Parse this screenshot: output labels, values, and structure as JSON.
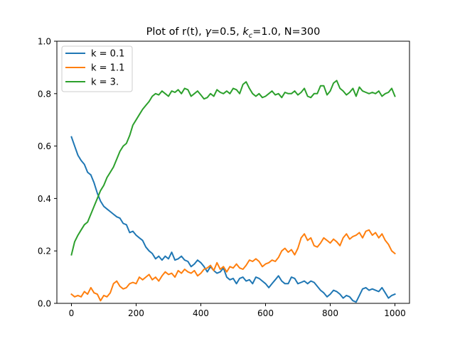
{
  "chart_data": {
    "type": "line",
    "title_parts": {
      "prefix": "Plot of r(t), ",
      "gamma_symbol": "γ",
      "gamma_value": "=0.5, ",
      "k_symbol": "k",
      "k_subscript": "c",
      "k_value": "=1.0, N=300"
    },
    "xlim": [
      -45,
      1045
    ],
    "ylim": [
      0.0,
      1.0
    ],
    "xticks": [
      0,
      200,
      400,
      600,
      800,
      1000
    ],
    "xtick_labels": [
      "0",
      "200",
      "400",
      "600",
      "800",
      "1000"
    ],
    "yticks": [
      0.0,
      0.2,
      0.4,
      0.6,
      0.8,
      1.0
    ],
    "ytick_labels": [
      "0.0",
      "0.2",
      "0.4",
      "0.6",
      "0.8",
      "1.0"
    ],
    "grid": false,
    "legend_position": "top-left",
    "series": [
      {
        "name": "k = 0.1",
        "color": "#1f77b4",
        "points": [
          [
            0,
            0.635
          ],
          [
            10,
            0.6
          ],
          [
            20,
            0.565
          ],
          [
            30,
            0.545
          ],
          [
            40,
            0.53
          ],
          [
            50,
            0.5
          ],
          [
            60,
            0.49
          ],
          [
            70,
            0.46
          ],
          [
            80,
            0.42
          ],
          [
            90,
            0.39
          ],
          [
            100,
            0.37
          ],
          [
            110,
            0.36
          ],
          [
            120,
            0.35
          ],
          [
            130,
            0.34
          ],
          [
            140,
            0.33
          ],
          [
            150,
            0.325
          ],
          [
            160,
            0.305
          ],
          [
            170,
            0.3
          ],
          [
            180,
            0.27
          ],
          [
            190,
            0.275
          ],
          [
            200,
            0.26
          ],
          [
            210,
            0.25
          ],
          [
            220,
            0.24
          ],
          [
            230,
            0.215
          ],
          [
            240,
            0.2
          ],
          [
            250,
            0.19
          ],
          [
            260,
            0.17
          ],
          [
            270,
            0.18
          ],
          [
            280,
            0.165
          ],
          [
            290,
            0.18
          ],
          [
            300,
            0.17
          ],
          [
            310,
            0.195
          ],
          [
            320,
            0.165
          ],
          [
            330,
            0.17
          ],
          [
            340,
            0.18
          ],
          [
            350,
            0.165
          ],
          [
            360,
            0.16
          ],
          [
            370,
            0.14
          ],
          [
            380,
            0.15
          ],
          [
            390,
            0.165
          ],
          [
            400,
            0.155
          ],
          [
            410,
            0.14
          ],
          [
            420,
            0.12
          ],
          [
            430,
            0.14
          ],
          [
            440,
            0.125
          ],
          [
            450,
            0.115
          ],
          [
            460,
            0.12
          ],
          [
            470,
            0.135
          ],
          [
            480,
            0.1
          ],
          [
            490,
            0.09
          ],
          [
            500,
            0.095
          ],
          [
            510,
            0.075
          ],
          [
            520,
            0.095
          ],
          [
            530,
            0.1
          ],
          [
            540,
            0.085
          ],
          [
            550,
            0.09
          ],
          [
            560,
            0.075
          ],
          [
            570,
            0.1
          ],
          [
            580,
            0.095
          ],
          [
            590,
            0.085
          ],
          [
            600,
            0.075
          ],
          [
            610,
            0.06
          ],
          [
            620,
            0.075
          ],
          [
            630,
            0.09
          ],
          [
            640,
            0.105
          ],
          [
            650,
            0.085
          ],
          [
            660,
            0.075
          ],
          [
            670,
            0.075
          ],
          [
            680,
            0.1
          ],
          [
            690,
            0.095
          ],
          [
            700,
            0.075
          ],
          [
            710,
            0.08
          ],
          [
            720,
            0.085
          ],
          [
            730,
            0.075
          ],
          [
            740,
            0.085
          ],
          [
            750,
            0.08
          ],
          [
            760,
            0.065
          ],
          [
            770,
            0.05
          ],
          [
            780,
            0.04
          ],
          [
            790,
            0.025
          ],
          [
            800,
            0.035
          ],
          [
            810,
            0.05
          ],
          [
            820,
            0.045
          ],
          [
            830,
            0.035
          ],
          [
            840,
            0.02
          ],
          [
            850,
            0.03
          ],
          [
            860,
            0.025
          ],
          [
            870,
            0.01
          ],
          [
            880,
            0.005
          ],
          [
            890,
            0.03
          ],
          [
            900,
            0.055
          ],
          [
            910,
            0.06
          ],
          [
            920,
            0.05
          ],
          [
            930,
            0.055
          ],
          [
            940,
            0.05
          ],
          [
            950,
            0.045
          ],
          [
            960,
            0.06
          ],
          [
            970,
            0.04
          ],
          [
            980,
            0.02
          ],
          [
            990,
            0.03
          ],
          [
            1000,
            0.035
          ]
        ]
      },
      {
        "name": "k = 1.1",
        "color": "#ff7f0e",
        "points": [
          [
            0,
            0.035
          ],
          [
            10,
            0.025
          ],
          [
            20,
            0.03
          ],
          [
            30,
            0.025
          ],
          [
            40,
            0.045
          ],
          [
            50,
            0.035
          ],
          [
            60,
            0.06
          ],
          [
            70,
            0.04
          ],
          [
            80,
            0.035
          ],
          [
            90,
            0.01
          ],
          [
            100,
            0.03
          ],
          [
            110,
            0.025
          ],
          [
            120,
            0.04
          ],
          [
            130,
            0.075
          ],
          [
            140,
            0.085
          ],
          [
            150,
            0.065
          ],
          [
            160,
            0.055
          ],
          [
            170,
            0.06
          ],
          [
            180,
            0.075
          ],
          [
            190,
            0.08
          ],
          [
            200,
            0.075
          ],
          [
            210,
            0.1
          ],
          [
            220,
            0.09
          ],
          [
            230,
            0.1
          ],
          [
            240,
            0.11
          ],
          [
            250,
            0.09
          ],
          [
            260,
            0.1
          ],
          [
            270,
            0.085
          ],
          [
            280,
            0.105
          ],
          [
            290,
            0.12
          ],
          [
            300,
            0.11
          ],
          [
            310,
            0.115
          ],
          [
            320,
            0.1
          ],
          [
            330,
            0.125
          ],
          [
            340,
            0.115
          ],
          [
            350,
            0.13
          ],
          [
            360,
            0.12
          ],
          [
            370,
            0.115
          ],
          [
            380,
            0.125
          ],
          [
            390,
            0.105
          ],
          [
            400,
            0.115
          ],
          [
            410,
            0.13
          ],
          [
            420,
            0.135
          ],
          [
            430,
            0.145
          ],
          [
            440,
            0.125
          ],
          [
            450,
            0.155
          ],
          [
            460,
            0.13
          ],
          [
            470,
            0.14
          ],
          [
            480,
            0.12
          ],
          [
            490,
            0.14
          ],
          [
            500,
            0.135
          ],
          [
            510,
            0.15
          ],
          [
            520,
            0.135
          ],
          [
            530,
            0.13
          ],
          [
            540,
            0.145
          ],
          [
            550,
            0.165
          ],
          [
            560,
            0.16
          ],
          [
            570,
            0.17
          ],
          [
            580,
            0.16
          ],
          [
            590,
            0.14
          ],
          [
            600,
            0.15
          ],
          [
            610,
            0.155
          ],
          [
            620,
            0.165
          ],
          [
            630,
            0.16
          ],
          [
            640,
            0.175
          ],
          [
            650,
            0.2
          ],
          [
            660,
            0.21
          ],
          [
            670,
            0.195
          ],
          [
            680,
            0.205
          ],
          [
            690,
            0.185
          ],
          [
            700,
            0.21
          ],
          [
            710,
            0.25
          ],
          [
            720,
            0.265
          ],
          [
            730,
            0.24
          ],
          [
            740,
            0.25
          ],
          [
            750,
            0.22
          ],
          [
            760,
            0.215
          ],
          [
            770,
            0.23
          ],
          [
            780,
            0.25
          ],
          [
            790,
            0.24
          ],
          [
            800,
            0.23
          ],
          [
            810,
            0.245
          ],
          [
            820,
            0.235
          ],
          [
            830,
            0.22
          ],
          [
            840,
            0.25
          ],
          [
            850,
            0.265
          ],
          [
            860,
            0.245
          ],
          [
            870,
            0.255
          ],
          [
            880,
            0.26
          ],
          [
            890,
            0.27
          ],
          [
            900,
            0.25
          ],
          [
            910,
            0.275
          ],
          [
            920,
            0.28
          ],
          [
            930,
            0.26
          ],
          [
            940,
            0.27
          ],
          [
            950,
            0.25
          ],
          [
            960,
            0.265
          ],
          [
            970,
            0.24
          ],
          [
            980,
            0.225
          ],
          [
            990,
            0.2
          ],
          [
            1000,
            0.19
          ]
        ]
      },
      {
        "name": "k = 3.",
        "color": "#2ca02c",
        "points": [
          [
            0,
            0.185
          ],
          [
            10,
            0.235
          ],
          [
            20,
            0.26
          ],
          [
            30,
            0.28
          ],
          [
            40,
            0.3
          ],
          [
            50,
            0.31
          ],
          [
            60,
            0.34
          ],
          [
            70,
            0.37
          ],
          [
            80,
            0.4
          ],
          [
            90,
            0.43
          ],
          [
            100,
            0.45
          ],
          [
            110,
            0.48
          ],
          [
            120,
            0.5
          ],
          [
            130,
            0.52
          ],
          [
            140,
            0.55
          ],
          [
            150,
            0.58
          ],
          [
            160,
            0.6
          ],
          [
            170,
            0.61
          ],
          [
            180,
            0.64
          ],
          [
            190,
            0.68
          ],
          [
            200,
            0.7
          ],
          [
            210,
            0.72
          ],
          [
            220,
            0.74
          ],
          [
            230,
            0.755
          ],
          [
            240,
            0.77
          ],
          [
            250,
            0.79
          ],
          [
            260,
            0.8
          ],
          [
            270,
            0.795
          ],
          [
            280,
            0.81
          ],
          [
            290,
            0.8
          ],
          [
            300,
            0.79
          ],
          [
            310,
            0.81
          ],
          [
            320,
            0.805
          ],
          [
            330,
            0.815
          ],
          [
            340,
            0.8
          ],
          [
            350,
            0.82
          ],
          [
            360,
            0.815
          ],
          [
            370,
            0.79
          ],
          [
            380,
            0.8
          ],
          [
            390,
            0.81
          ],
          [
            400,
            0.795
          ],
          [
            410,
            0.78
          ],
          [
            420,
            0.785
          ],
          [
            430,
            0.8
          ],
          [
            440,
            0.79
          ],
          [
            450,
            0.815
          ],
          [
            460,
            0.805
          ],
          [
            470,
            0.8
          ],
          [
            480,
            0.81
          ],
          [
            490,
            0.8
          ],
          [
            500,
            0.82
          ],
          [
            510,
            0.815
          ],
          [
            520,
            0.8
          ],
          [
            530,
            0.835
          ],
          [
            540,
            0.845
          ],
          [
            550,
            0.82
          ],
          [
            560,
            0.8
          ],
          [
            570,
            0.79
          ],
          [
            580,
            0.8
          ],
          [
            590,
            0.785
          ],
          [
            600,
            0.79
          ],
          [
            610,
            0.8
          ],
          [
            620,
            0.81
          ],
          [
            630,
            0.795
          ],
          [
            640,
            0.8
          ],
          [
            650,
            0.785
          ],
          [
            660,
            0.805
          ],
          [
            670,
            0.8
          ],
          [
            680,
            0.8
          ],
          [
            690,
            0.81
          ],
          [
            700,
            0.795
          ],
          [
            710,
            0.805
          ],
          [
            720,
            0.82
          ],
          [
            730,
            0.79
          ],
          [
            740,
            0.785
          ],
          [
            750,
            0.8
          ],
          [
            760,
            0.8
          ],
          [
            770,
            0.83
          ],
          [
            780,
            0.83
          ],
          [
            790,
            0.795
          ],
          [
            800,
            0.81
          ],
          [
            810,
            0.84
          ],
          [
            820,
            0.85
          ],
          [
            830,
            0.82
          ],
          [
            840,
            0.81
          ],
          [
            850,
            0.795
          ],
          [
            860,
            0.805
          ],
          [
            870,
            0.82
          ],
          [
            880,
            0.79
          ],
          [
            890,
            0.825
          ],
          [
            900,
            0.81
          ],
          [
            910,
            0.805
          ],
          [
            920,
            0.8
          ],
          [
            930,
            0.805
          ],
          [
            940,
            0.8
          ],
          [
            950,
            0.81
          ],
          [
            960,
            0.79
          ],
          [
            970,
            0.8
          ],
          [
            980,
            0.805
          ],
          [
            990,
            0.82
          ],
          [
            1000,
            0.79
          ]
        ]
      }
    ]
  }
}
